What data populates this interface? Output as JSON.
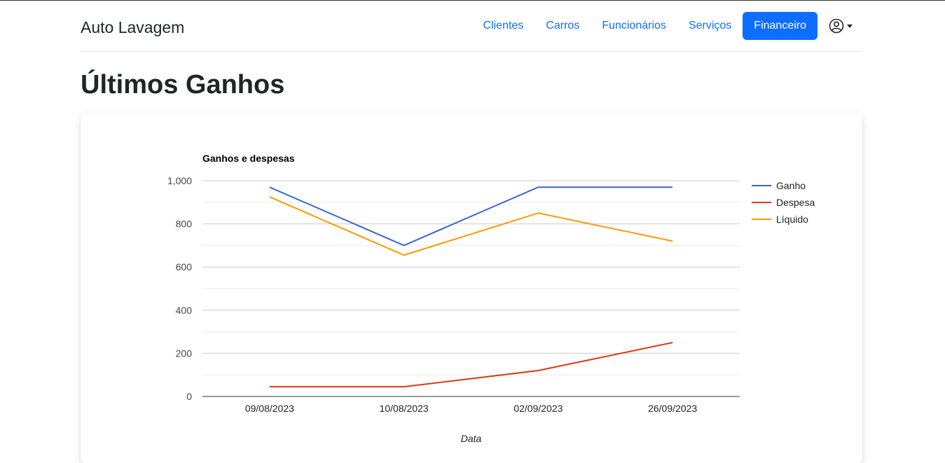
{
  "navbar": {
    "brand": "Auto Lavagem",
    "links": [
      {
        "label": "Clientes"
      },
      {
        "label": "Carros"
      },
      {
        "label": "Funcionários"
      },
      {
        "label": "Serviços"
      },
      {
        "label": "Financeiro",
        "active": true
      }
    ],
    "user_icon": "user-circle-icon"
  },
  "page": {
    "title": "Últimos Ganhos"
  },
  "colors": {
    "primary": "#0d6efd",
    "ganho": "#3366cc",
    "despesa": "#dc3912",
    "liquido": "#ff9900"
  },
  "chart_data": {
    "type": "line",
    "title": "Ganhos e despesas",
    "xlabel": "Data",
    "ylabel": "",
    "categories": [
      "09/08/2023",
      "10/08/2023",
      "02/09/2023",
      "26/09/2023"
    ],
    "series": [
      {
        "name": "Ganho",
        "values": [
          970,
          700,
          970,
          970
        ]
      },
      {
        "name": "Despesa",
        "values": [
          45,
          45,
          120,
          250
        ]
      },
      {
        "name": "Líquido",
        "values": [
          925,
          655,
          850,
          720
        ]
      }
    ],
    "ylim": [
      0,
      1000
    ],
    "yticks": [
      "0",
      "200",
      "400",
      "600",
      "800",
      "1,000"
    ],
    "grid": true,
    "legend": "right"
  }
}
